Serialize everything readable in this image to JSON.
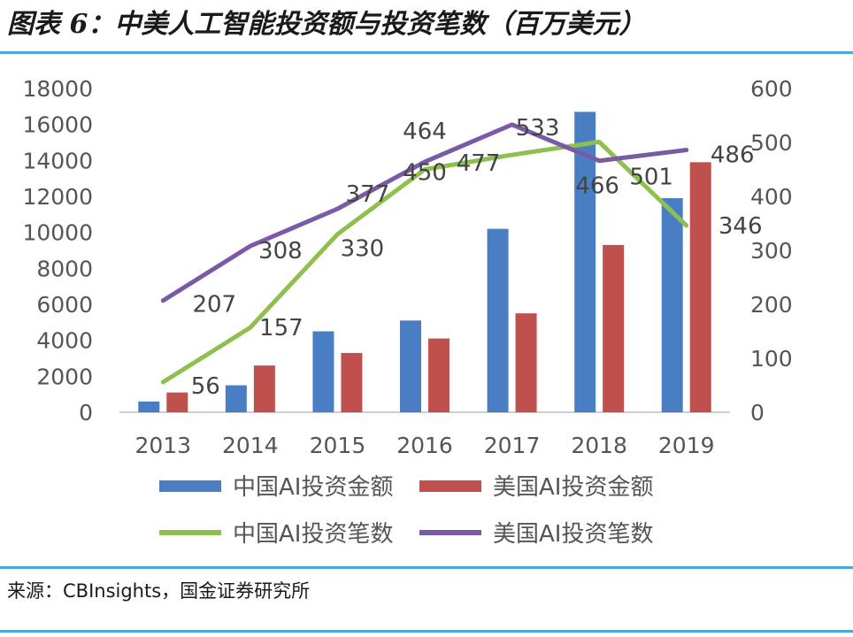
{
  "header": {
    "title": "图表 6：中美人工智能投资额与投资笔数（百万美元）"
  },
  "footer": {
    "source": "来源：CBInsights，国金证券研究所"
  },
  "colors": {
    "china_amount": "#4a7ec4",
    "us_amount": "#c0504d",
    "china_deals": "#8fc04f",
    "us_deals": "#7a5aa7",
    "axis_text": "#555555",
    "rule": "#4aa8df"
  },
  "chart_data": {
    "type": "bar",
    "categories": [
      "2013",
      "2014",
      "2015",
      "2016",
      "2017",
      "2018",
      "2019"
    ],
    "y_left": {
      "ylim": [
        0,
        18000
      ],
      "ticks": [
        "0",
        "2000",
        "4000",
        "6000",
        "8000",
        "10000",
        "12000",
        "14000",
        "16000",
        "18000"
      ]
    },
    "y_right": {
      "ylim": [
        0,
        600
      ],
      "ticks": [
        "0",
        "100",
        "200",
        "300",
        "400",
        "500",
        "600"
      ]
    },
    "grid": false,
    "legend_position": "bottom",
    "bar_series": [
      {
        "name": "中国AI投资金额",
        "axis": "left",
        "values": [
          600,
          1500,
          4500,
          5100,
          10200,
          16700,
          11900
        ]
      },
      {
        "name": "美国AI投资金额",
        "axis": "left",
        "values": [
          1100,
          2600,
          3300,
          4100,
          5500,
          9300,
          13900
        ]
      }
    ],
    "line_series": [
      {
        "name": "中国AI投资笔数",
        "axis": "right",
        "values": [
          56,
          157,
          330,
          450,
          477,
          501,
          346
        ],
        "labels": [
          "56",
          "157",
          "330",
          "450",
          "477",
          "501",
          "346"
        ]
      },
      {
        "name": "美国AI投资笔数",
        "axis": "right",
        "values": [
          207,
          308,
          377,
          464,
          533,
          466,
          486
        ],
        "labels": [
          "207",
          "308",
          "377",
          "464",
          "533",
          "466",
          "486"
        ]
      }
    ]
  }
}
